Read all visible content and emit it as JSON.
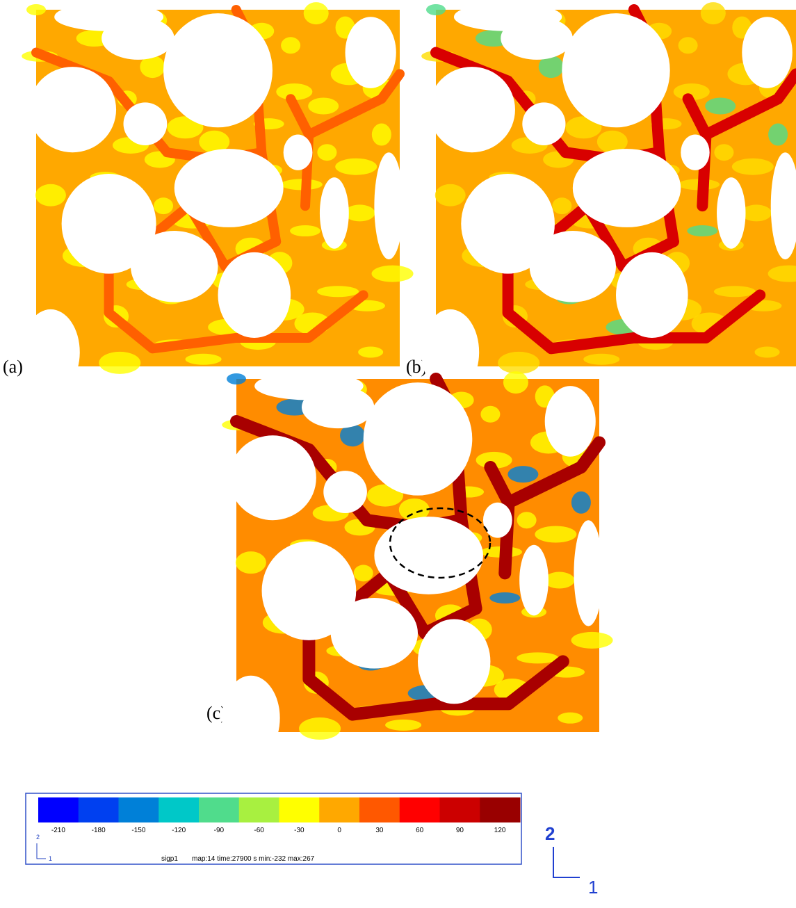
{
  "panels": [
    {
      "label": "(a)"
    },
    {
      "label": "(b)"
    },
    {
      "label": "(c)"
    }
  ],
  "colorbar": {
    "colors": [
      "#0000ff",
      "#0040f0",
      "#0080d8",
      "#00c8c8",
      "#50dc8c",
      "#a8f040",
      "#ffff00",
      "#ffa800",
      "#ff5800",
      "#ff0000",
      "#cc0000",
      "#990000"
    ],
    "ticks": [
      -210,
      -180,
      -150,
      -120,
      -90,
      -60,
      -30,
      0,
      30,
      60,
      90,
      120
    ],
    "variable": "sigp1",
    "info": "map:14 time:27900 s min:-232 max:267",
    "triad": {
      "up": "2",
      "right": "1"
    }
  },
  "triad": {
    "up": "2",
    "right": "1"
  }
}
